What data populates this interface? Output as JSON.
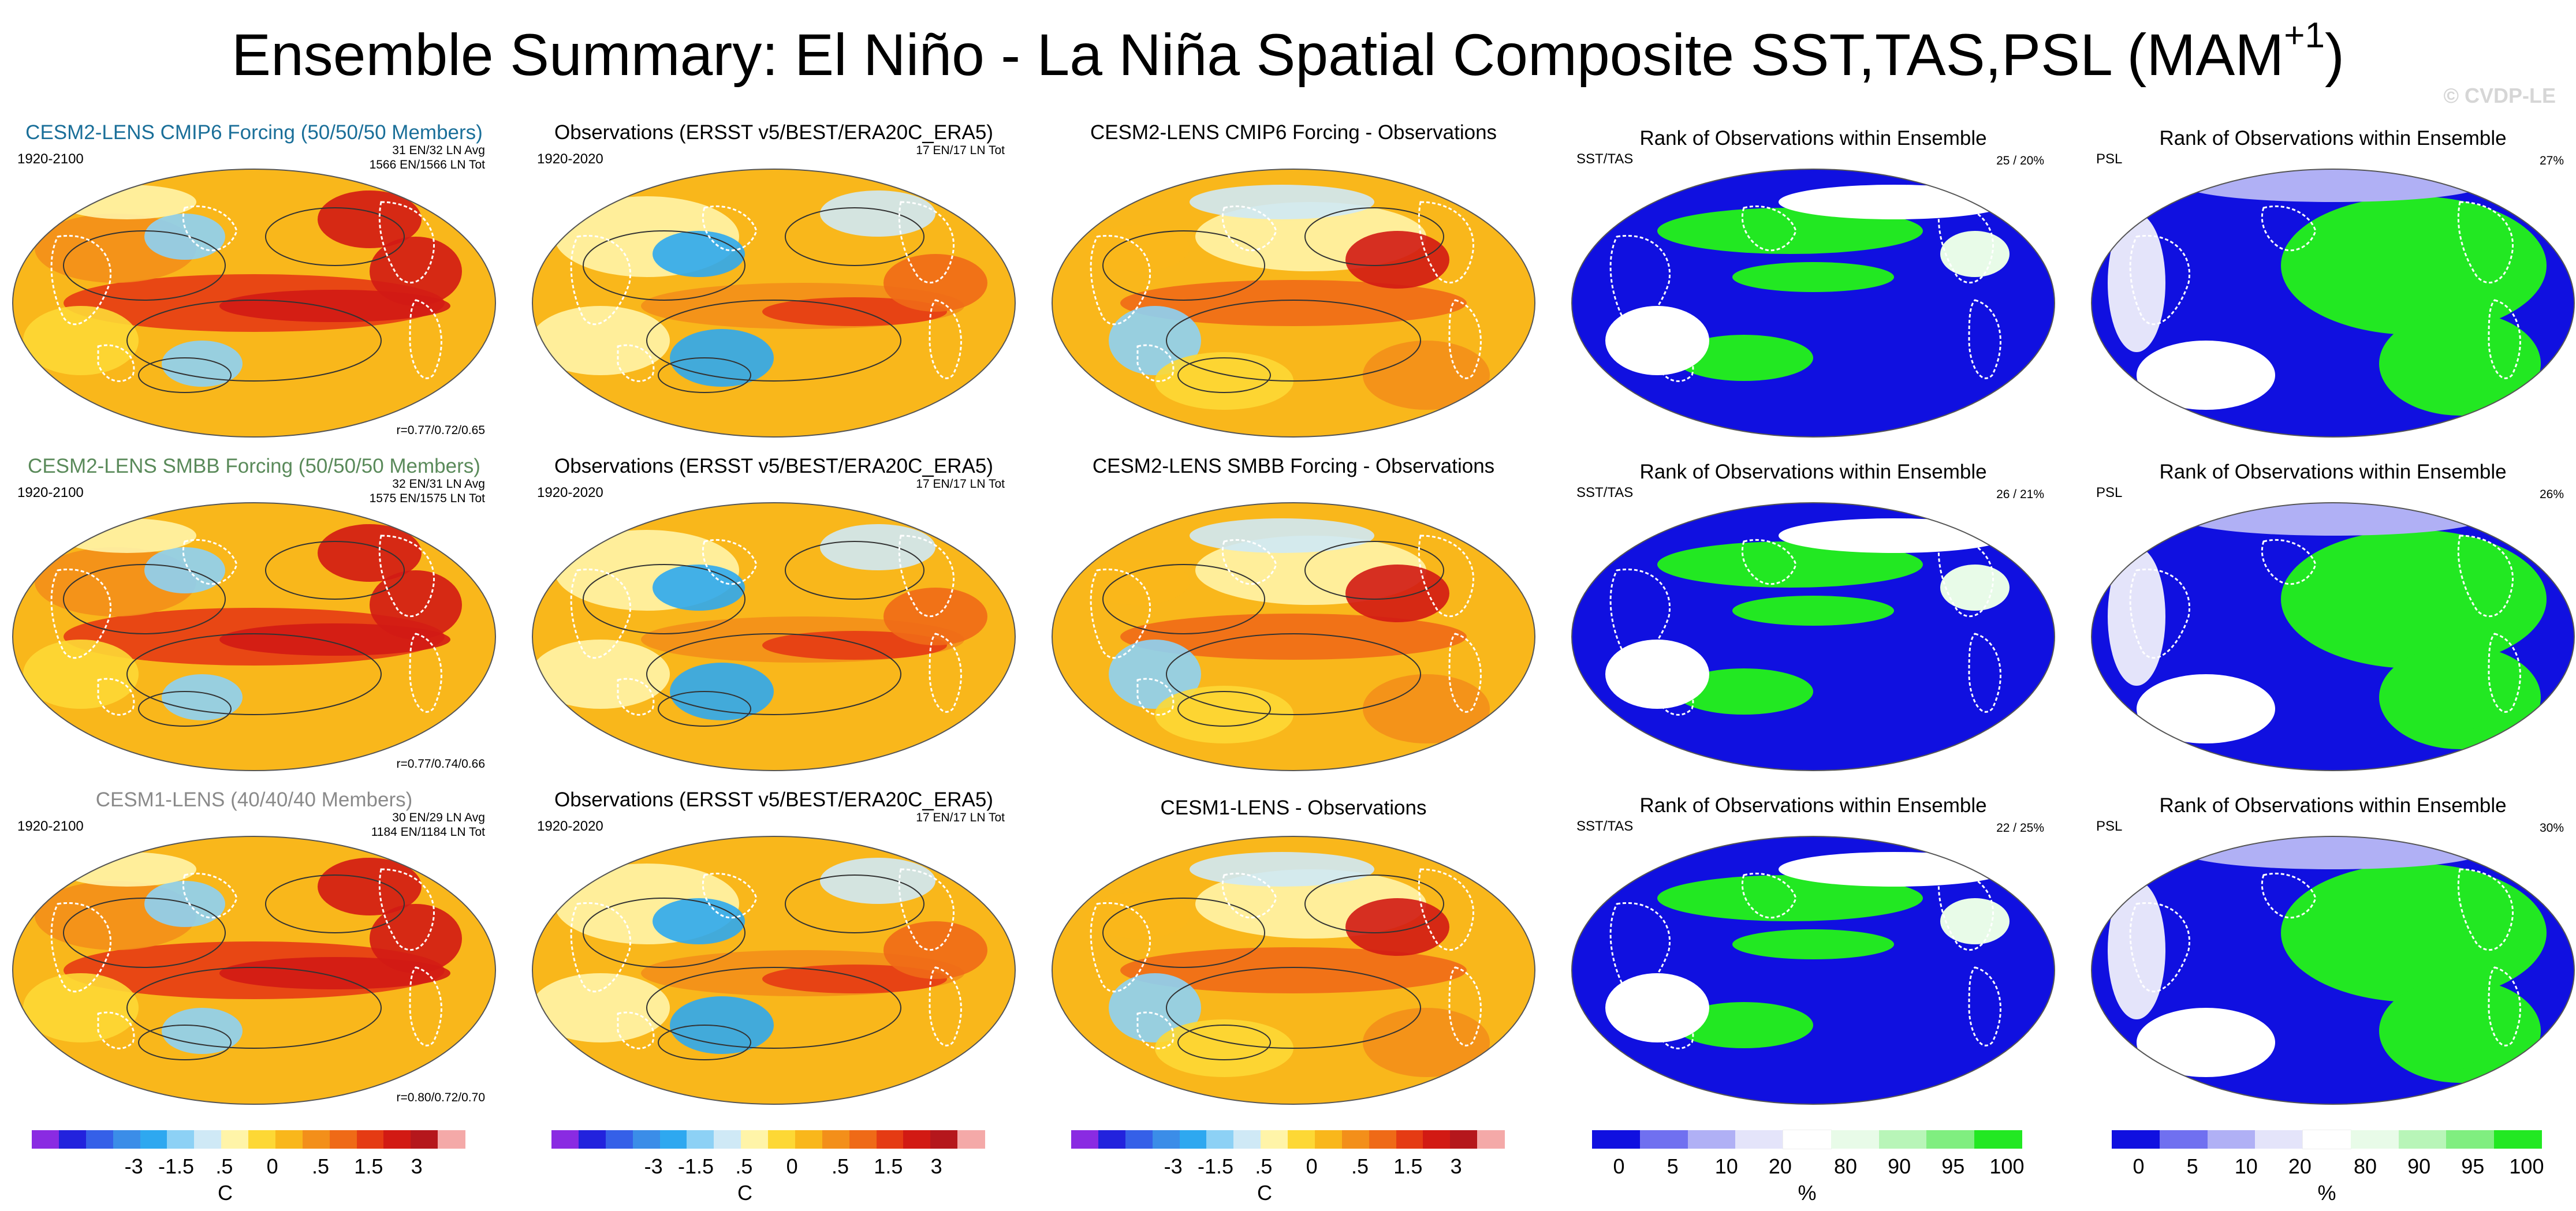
{
  "figure": {
    "title_main": "Ensemble Summary: El Niño - La Niña Spatial Composite SST,TAS,PSL (MAM",
    "title_sup": "+1",
    "title_end": ")",
    "watermark": "© CVDP-LE"
  },
  "colors": {
    "temp_scale": [
      "#8a2be2",
      "#2222dd",
      "#3560e8",
      "#3b8de8",
      "#2ea8f0",
      "#8dd1f5",
      "#cfe9f6",
      "#fff4a8",
      "#fdd835",
      "#f9b71b",
      "#f38f1a",
      "#ef6a17",
      "#e53b14",
      "#d21a14",
      "#b5171c",
      "#f4a9a8"
    ],
    "rank_scale": [
      "#1010e0",
      "#7070f0",
      "#b0b0f5",
      "#e4e4fa",
      "#ffffff",
      "#e8fbe8",
      "#b8f5b8",
      "#80ee80",
      "#22e822"
    ],
    "title_blue": "#1a6f99",
    "title_green": "#5a8a5a",
    "title_gray": "#8a8a8a"
  },
  "rows": [
    {
      "ensemble": {
        "title": "CESM2-LENS CMIP6 Forcing (50/50/50 Members)",
        "label": "1920-2100",
        "stats1": "31 EN/32 LN Avg",
        "stats2": "1566 EN/1566 LN Tot",
        "corr": "r=0.77/0.72/0.65"
      },
      "obs": {
        "title": "Observations (ERSST v5/BEST/ERA20C_ERA5)",
        "label": "1920-2020",
        "stats": "17 EN/17 LN Tot"
      },
      "diff": {
        "title": "CESM2-LENS CMIP6 Forcing - Observations"
      },
      "rank_sst": {
        "title": "Rank of Observations within Ensemble",
        "label": "SST/TAS",
        "pct": "25 /  20%"
      },
      "rank_psl": {
        "title": "Rank of Observations within Ensemble",
        "label": "PSL",
        "pct": "27%"
      }
    },
    {
      "ensemble": {
        "title": "CESM2-LENS SMBB Forcing (50/50/50 Members)",
        "label": "1920-2100",
        "stats1": "32 EN/31 LN Avg",
        "stats2": "1575 EN/1575 LN Tot",
        "corr": "r=0.77/0.74/0.66"
      },
      "obs": {
        "title": "Observations (ERSST v5/BEST/ERA20C_ERA5)",
        "label": "1920-2020",
        "stats": "17 EN/17 LN Tot"
      },
      "diff": {
        "title": "CESM2-LENS SMBB Forcing - Observations"
      },
      "rank_sst": {
        "title": "Rank of Observations within Ensemble",
        "label": "SST/TAS",
        "pct": "26 /  21%"
      },
      "rank_psl": {
        "title": "Rank of Observations within Ensemble",
        "label": "PSL",
        "pct": "26%"
      }
    },
    {
      "ensemble": {
        "title": "CESM1-LENS (40/40/40 Members)",
        "label": "1920-2100",
        "stats1": "30 EN/29 LN Avg",
        "stats2": "1184 EN/1184 LN Tot",
        "corr": "r=0.80/0.72/0.70"
      },
      "obs": {
        "title": "Observations (ERSST v5/BEST/ERA20C_ERA5)",
        "label": "1920-2020",
        "stats": "17 EN/17 LN Tot"
      },
      "diff": {
        "title": "CESM1-LENS - Observations"
      },
      "rank_sst": {
        "title": "Rank of Observations within Ensemble",
        "label": "SST/TAS",
        "pct": "22 /  25%"
      },
      "rank_psl": {
        "title": "Rank of Observations within Ensemble",
        "label": "PSL",
        "pct": "30%"
      }
    }
  ],
  "colorbars": {
    "temp": {
      "ticks": [
        "-3",
        "-1.5",
        ".5",
        "0",
        ".5",
        "1.5",
        "3"
      ],
      "unit": "C"
    },
    "rank": {
      "ticks": [
        "0",
        "5",
        "10",
        "20",
        "80",
        "90",
        "95",
        "100"
      ],
      "unit": "%"
    }
  },
  "chart_data": {
    "type": "heatmap",
    "title": "Ensemble Summary: El Niño - La Niña Spatial Composite SST,TAS,PSL (MAM+1)",
    "projection": "Robinson (global)",
    "panel_grid": {
      "rows": 3,
      "columns": 5
    },
    "columns": [
      "Ensemble composite",
      "Observations",
      "Ensemble - Observations",
      "Rank SST/TAS",
      "Rank PSL"
    ],
    "temperature_colorbar_ticks": [
      "-3",
      "-1.5",
      ".5",
      "0",
      ".5",
      "1.5",
      "3"
    ],
    "temperature_unit": "C",
    "rank_colorbar_ticks": [
      0,
      5,
      10,
      20,
      80,
      90,
      95,
      100
    ],
    "rank_unit": "%",
    "pattern_correlations": [
      "r=0.77/0.72/0.65",
      "r=0.77/0.74/0.66",
      "r=0.80/0.72/0.70"
    ],
    "rank_sst_tas_pct": [
      "25 / 20%",
      "26 / 21%",
      "22 / 25%"
    ],
    "rank_psl_pct": [
      "27%",
      "26%",
      "30%"
    ]
  }
}
